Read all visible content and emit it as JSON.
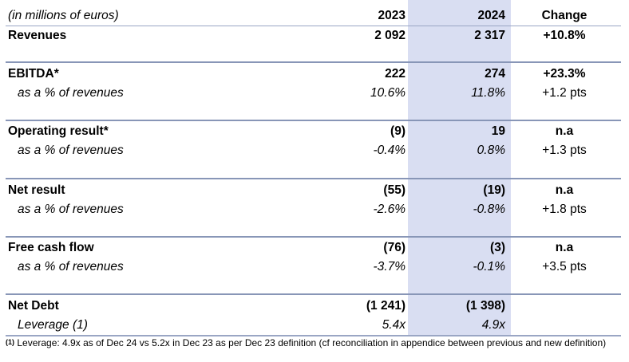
{
  "table": {
    "header": {
      "unit_label": "(in millions of euros)",
      "col_2023": "2023",
      "col_2024": "2024",
      "col_change": "Change"
    },
    "revenues": {
      "label": "Revenues",
      "v2023": "2 092",
      "v2024": "2 317",
      "change": "+10.8%"
    },
    "ebitda": {
      "label": "EBITDA*",
      "v2023": "222",
      "v2024": "274",
      "change": "+23.3%",
      "sub": {
        "label": "as a % of revenues",
        "v2023": "10.6%",
        "v2024": "11.8%",
        "change": "+1.2 pts"
      }
    },
    "operating": {
      "label": "Operating result*",
      "v2023": "(9)",
      "v2024": "19",
      "change": "n.a",
      "sub": {
        "label": "as a % of revenues",
        "v2023": "-0.4%",
        "v2024": "0.8%",
        "change": "+1.3 pts"
      }
    },
    "net_result": {
      "label": "Net result",
      "v2023": "(55)",
      "v2024": "(19)",
      "change": "n.a",
      "sub": {
        "label": "as a % of revenues",
        "v2023": "-2.6%",
        "v2024": "-0.8%",
        "change": "+1.8 pts"
      }
    },
    "fcf": {
      "label": "Free cash flow",
      "v2023": "(76)",
      "v2024": "(3)",
      "change": "n.a",
      "sub": {
        "label": "as a % of revenues",
        "v2023": "-3.7%",
        "v2024": "-0.1%",
        "change": "+3.5 pts"
      }
    },
    "net_debt": {
      "label": "Net Debt",
      "v2023": "(1 241)",
      "v2024": "(1 398)",
      "change": "",
      "sub": {
        "label": "Leverage (1)",
        "v2023": "5.4x",
        "v2024": "4.9x",
        "change": ""
      }
    }
  },
  "footnote": {
    "marker": "(1)",
    "text": "Leverage: 4.9x as of Dec 24 vs 5.2x in Dec 23 as per Dec 23 definition (cf reconciliation in appendice between previous and new definition)"
  },
  "colors": {
    "highlight": "#d9def2",
    "rule": "#8896b7"
  }
}
